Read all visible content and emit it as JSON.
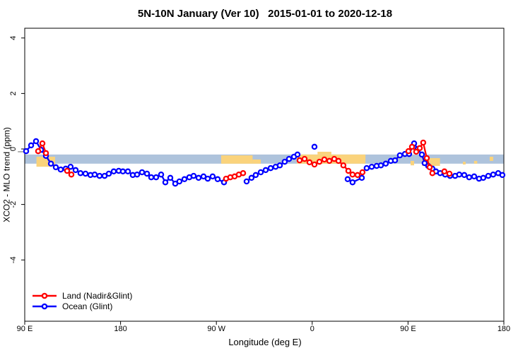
{
  "title": "5N-10N January (Ver 10)   2015-01-01 to 2020-12-18",
  "colors": {
    "land_series": "#FF0000",
    "ocean_series": "#0000FF",
    "ocean_strip": "#AEC3DC",
    "land_strip": "#FAD37C",
    "axis": "#000000",
    "baseline_gray": "#9E9E9E"
  },
  "chart_data": {
    "type": "line",
    "title": "5N-10N January (Ver 10)   2015-01-01 to 2020-12-18",
    "xlabel": "Longitude (deg E)",
    "ylabel": "XCO2 - MLO trend (ppm)",
    "x_axis": {
      "range": [
        90,
        540
      ],
      "ticks": [
        {
          "lon": 90,
          "label": "90 E"
        },
        {
          "lon": 180,
          "label": "180"
        },
        {
          "lon": 270,
          "label": "90 W"
        },
        {
          "lon": 360,
          "label": "0"
        },
        {
          "lon": 450,
          "label": "90 E"
        },
        {
          "lon": 540,
          "label": "180"
        }
      ]
    },
    "y_axis": {
      "range": [
        -6.2,
        4.35
      ],
      "ticks": [
        {
          "value": 4,
          "label": "4"
        },
        {
          "value": 2,
          "label": "2"
        },
        {
          "value": 0,
          "label": "0"
        },
        {
          "value": -2,
          "label": "-2"
        },
        {
          "value": -4,
          "label": "-4"
        }
      ]
    },
    "map_strip": {
      "description": "ocean band across plot with land patches, latitude strip 5N-10N",
      "ocean_band": {
        "v_top": -0.2,
        "v_bottom": -0.53
      },
      "land_patches": [
        {
          "name": "borneo-malaysia",
          "lon0": 101,
          "lon1": 118.5,
          "v_top": -0.28,
          "v_bottom": -0.64
        },
        {
          "name": "central-south-america",
          "lon0": 274.5,
          "lon1": 304,
          "v_top": -0.23,
          "v_bottom": -0.53
        },
        {
          "name": "south-america-tail",
          "lon0": 304,
          "lon1": 311.7,
          "v_top": -0.38,
          "v_bottom": -0.53
        },
        {
          "name": "africa",
          "lon0": 345.5,
          "lon1": 410,
          "v_top": -0.2,
          "v_bottom": -0.53
        },
        {
          "name": "africa-coast-bump",
          "lon0": 365,
          "lon1": 378,
          "v_top": -0.1,
          "v_bottom": -0.2
        },
        {
          "name": "andaman-islands",
          "lon0": 452.4,
          "lon1": 455.7,
          "v_top": -0.43,
          "v_bottom": -0.59
        },
        {
          "name": "malaysia-borneo-wrap",
          "lon0": 463,
          "lon1": 480,
          "v_top": -0.33,
          "v_bottom": -0.61
        },
        {
          "name": "pacific-speck-1",
          "lon0": 501.5,
          "lon1": 504.1,
          "v_top": -0.46,
          "v_bottom": -0.56
        },
        {
          "name": "pacific-speck-2",
          "lon0": 512,
          "lon1": 515,
          "v_top": -0.43,
          "v_bottom": -0.53
        },
        {
          "name": "pacific-speck-3",
          "lon0": 526.7,
          "lon1": 530,
          "v_top": -0.28,
          "v_bottom": -0.43
        }
      ]
    },
    "baseline_segment": {
      "lon0": 83.5,
      "lon1": 93.5,
      "value": -0.1
    },
    "series": [
      {
        "name": "Land (Nadir&Glint)",
        "color": "#FF0000",
        "segments": [
          [
            [
              102.6,
              -0.08
            ],
            [
              106.6,
              0.2
            ],
            [
              109.9,
              -0.15
            ]
          ],
          [
            [
              129.8,
              -0.79
            ],
            [
              133.8,
              -0.92
            ]
          ],
          [
            [
              279.1,
              -1.07
            ],
            [
              283.1,
              -1.02
            ],
            [
              287.1,
              -0.99
            ],
            [
              291.1,
              -0.92
            ],
            [
              295.1,
              -0.87
            ]
          ],
          [
            [
              348.2,
              -0.41
            ],
            [
              352.8,
              -0.36
            ],
            [
              357.5,
              -0.48
            ],
            [
              362.1,
              -0.56
            ],
            [
              366.8,
              -0.46
            ],
            [
              371.4,
              -0.38
            ],
            [
              376.1,
              -0.43
            ],
            [
              380.7,
              -0.36
            ],
            [
              384.7,
              -0.43
            ],
            [
              389.3,
              -0.59
            ],
            [
              394.0,
              -0.79
            ],
            [
              397.9,
              -0.92
            ],
            [
              402.6,
              -0.94
            ],
            [
              407.2,
              -0.84
            ]
          ],
          [
            [
              450.4,
              -0.08
            ],
            [
              453.7,
              0.08
            ],
            [
              457.7,
              -0.1
            ],
            [
              461.0,
              0.03
            ],
            [
              464.3,
              0.23
            ],
            [
              467.6,
              -0.33
            ],
            [
              470.3,
              -0.66
            ],
            [
              472.9,
              -0.87
            ]
          ],
          [
            [
              484.2,
              -0.81
            ],
            [
              488.9,
              -0.89
            ]
          ]
        ]
      },
      {
        "name": "Ocean (Glint)",
        "color": "#0000FF",
        "segments": [
          [
            [
              91.3,
              -0.08
            ],
            [
              96.0,
              0.13
            ],
            [
              100.6,
              0.28
            ],
            [
              105.3,
              -0.03
            ],
            [
              109.9,
              -0.25
            ],
            [
              114.6,
              -0.53
            ],
            [
              119.2,
              -0.66
            ],
            [
              123.8,
              -0.74
            ],
            [
              128.5,
              -0.71
            ],
            [
              133.1,
              -0.64
            ],
            [
              137.8,
              -0.76
            ],
            [
              142.4,
              -0.87
            ],
            [
              147.1,
              -0.89
            ],
            [
              151.7,
              -0.94
            ],
            [
              155.7,
              -0.92
            ],
            [
              160.3,
              -0.97
            ],
            [
              165.0,
              -0.97
            ],
            [
              169.0,
              -0.89
            ],
            [
              173.6,
              -0.81
            ],
            [
              178.3,
              -0.79
            ],
            [
              182.2,
              -0.81
            ],
            [
              186.9,
              -0.81
            ],
            [
              191.5,
              -0.94
            ],
            [
              195.5,
              -0.92
            ],
            [
              200.2,
              -0.84
            ],
            [
              204.8,
              -0.89
            ],
            [
              208.8,
              -1.02
            ],
            [
              213.4,
              -1.02
            ],
            [
              218.1,
              -0.92
            ],
            [
              222.1,
              -1.2
            ],
            [
              226.7,
              -1.04
            ],
            [
              231.4,
              -1.25
            ],
            [
              235.3,
              -1.17
            ],
            [
              240.0,
              -1.09
            ],
            [
              244.6,
              -1.02
            ],
            [
              248.6,
              -0.97
            ],
            [
              253.3,
              -1.04
            ],
            [
              257.9,
              -0.99
            ],
            [
              261.9,
              -1.07
            ],
            [
              266.5,
              -0.99
            ],
            [
              271.2,
              -1.09
            ],
            [
              277.2,
              -1.2
            ]
          ],
          [
            [
              298.4,
              -1.17
            ],
            [
              303.0,
              -1.04
            ],
            [
              307.0,
              -0.94
            ],
            [
              311.7,
              -0.84
            ],
            [
              316.3,
              -0.76
            ],
            [
              321.0,
              -0.69
            ],
            [
              325.6,
              -0.64
            ],
            [
              329.6,
              -0.59
            ],
            [
              334.2,
              -0.46
            ],
            [
              338.2,
              -0.36
            ],
            [
              342.9,
              -0.28
            ],
            [
              346.2,
              -0.2
            ]
          ],
          [
            [
              362.1,
              0.08
            ]
          ],
          [
            [
              393.3,
              -1.09
            ],
            [
              397.9,
              -1.2
            ],
            [
              406.6,
              -1.04
            ]
          ],
          [
            [
              411.2,
              -0.69
            ],
            [
              415.9,
              -0.64
            ],
            [
              420.5,
              -0.61
            ],
            [
              424.5,
              -0.59
            ],
            [
              429.1,
              -0.53
            ],
            [
              433.8,
              -0.43
            ],
            [
              437.8,
              -0.41
            ],
            [
              442.4,
              -0.23
            ],
            [
              447.1,
              -0.18
            ],
            [
              451.0,
              -0.18
            ],
            [
              455.7,
              0.2
            ],
            [
              459.0,
              0.0
            ],
            [
              463.0,
              -0.2
            ],
            [
              465.6,
              -0.51
            ],
            [
              468.9,
              -0.61
            ],
            [
              472.9,
              -0.71
            ],
            [
              476.2,
              -0.81
            ],
            [
              480.2,
              -0.87
            ],
            [
              484.9,
              -0.92
            ],
            [
              489.5,
              -0.97
            ],
            [
              494.2,
              -0.97
            ],
            [
              498.1,
              -0.92
            ],
            [
              502.8,
              -0.94
            ],
            [
              507.4,
              -1.02
            ],
            [
              512.1,
              -0.99
            ],
            [
              516.7,
              -1.07
            ],
            [
              520.7,
              -1.04
            ],
            [
              525.4,
              -0.97
            ],
            [
              530.0,
              -0.92
            ],
            [
              534.7,
              -0.87
            ],
            [
              538.6,
              -0.94
            ]
          ]
        ]
      }
    ],
    "legend": {
      "position": "bottom-left",
      "entries": [
        "Land (Nadir&Glint)",
        "Ocean (Glint)"
      ]
    }
  }
}
